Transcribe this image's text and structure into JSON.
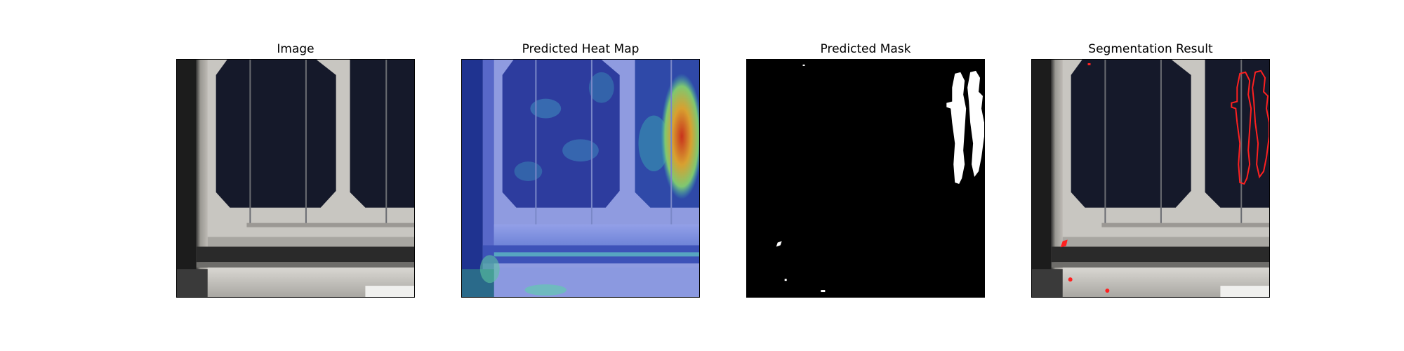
{
  "figure": {
    "panels": [
      {
        "id": "image",
        "title": "Image"
      },
      {
        "id": "heatmap",
        "title": "Predicted Heat Map"
      },
      {
        "id": "mask",
        "title": "Predicted Mask"
      },
      {
        "id": "segmentation",
        "title": "Segmentation Result"
      }
    ]
  },
  "colors": {
    "background": "#ffffff",
    "cell": "#15192a",
    "frame": "#c9c6c0",
    "mask_fg": "#ffffff",
    "mask_bg": "#000000",
    "contour": "#ff2020",
    "heat_low": "#2a3c9c",
    "heat_mid": "#37c8b8",
    "heat_high": "#d2301a"
  }
}
